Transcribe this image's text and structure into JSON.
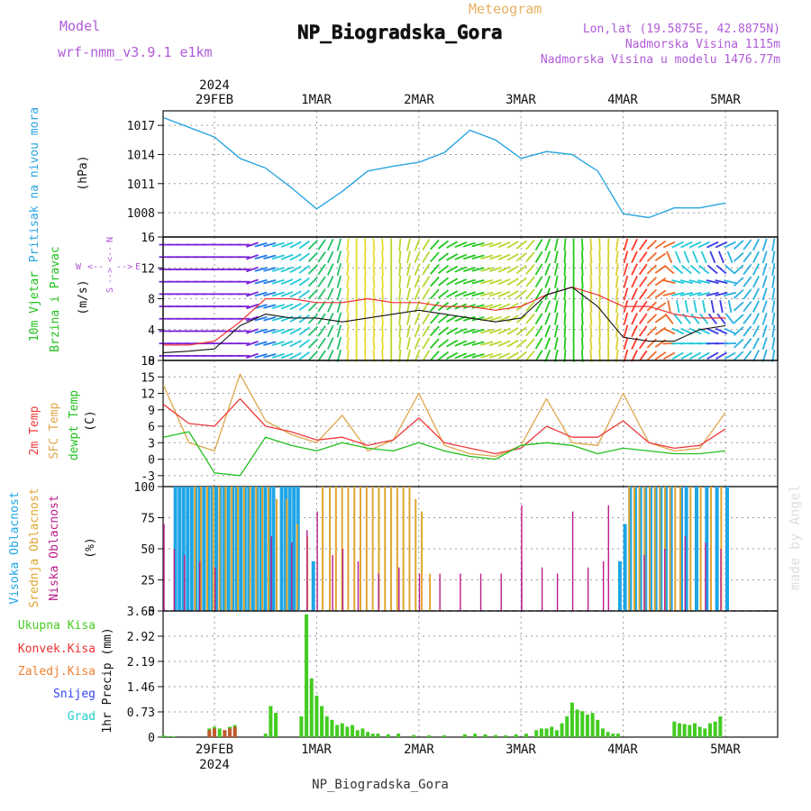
{
  "header": {
    "model_label": "Model",
    "model_name": "wrf-nmm_v3.9.1 e1km",
    "meteogram_label": "Meteogram",
    "station": "NP_Biogradska_Gora",
    "lonlat": "Lon,lat (19.5875E, 42.8875N)",
    "elevation": "Nadmorska Visina 1115m",
    "model_elevation": "Nadmorska Visina u modelu 1476.77m",
    "footer_station": "NP_Biogradska_Gora",
    "watermark": "made by Angel"
  },
  "time_axis": {
    "year_top": "2024",
    "year_bottom": "2024",
    "days": [
      "29FEB",
      "1MAR",
      "2MAR",
      "3MAR",
      "4MAR",
      "5MAR"
    ]
  },
  "colors": {
    "pressure": "#2aa5e0",
    "temp_2m": "#ee3a3a",
    "temp_sfc": "#dea64a",
    "dewpoint": "#22c01e",
    "high_cloud": "#1ea6e6",
    "mid_cloud": "#e0a630",
    "low_cloud": "#bb1c8a",
    "precip_total": "#44cc22",
    "precip_conv": "#ee3333",
    "precip_frozen": "#f08030",
    "precip_snow": "#3344ee",
    "precip_hail": "#22cccc",
    "header_text": "#b05ad8",
    "meteogram_text": "#e8b060"
  },
  "chart_data": [
    {
      "id": "pressure",
      "type": "line",
      "ylabel_parts": [
        "Pritisak na nivou mora",
        "(hPa)"
      ],
      "yticks": [
        "1008",
        "1011",
        "1014",
        "1017"
      ],
      "ylim": [
        1005.5,
        1018.5
      ],
      "x_days": [
        0,
        0.25,
        0.5,
        0.75,
        1.0,
        1.25,
        1.5,
        1.75,
        2.0,
        2.25,
        2.5,
        2.75,
        3.0,
        3.25,
        3.5,
        3.75,
        4.0,
        4.25,
        4.5,
        4.75,
        5.0,
        5.25,
        5.5
      ],
      "series": [
        {
          "values": [
            1017.8,
            1016.8,
            1015.8,
            1013.6,
            1012.6,
            1010.6,
            1008.4,
            1010.2,
            1012.3,
            1012.8,
            1013.2,
            1014.2,
            1016.5,
            1015.5,
            1013.6,
            1014.3,
            1014.0,
            1012.3,
            1007.9,
            1007.5,
            1008.5,
            1008.5,
            1009.0
          ]
        }
      ]
    },
    {
      "id": "wind",
      "type": "line",
      "ylabel_parts": [
        "10m Vjetar",
        "Brzina i Pravac",
        "(m/s)"
      ],
      "direction_key": [
        "N",
        "W",
        "E",
        "S"
      ],
      "yticks": [
        "0",
        "4",
        "8",
        "12",
        "16"
      ],
      "ylim": [
        0,
        16
      ],
      "x_days": [
        0,
        0.25,
        0.5,
        0.75,
        1.0,
        1.25,
        1.5,
        1.75,
        2.0,
        2.25,
        2.5,
        2.75,
        3.0,
        3.25,
        3.5,
        3.75,
        4.0,
        4.25,
        4.5,
        4.75,
        5.0,
        5.25,
        5.5
      ],
      "series": [
        {
          "name": "speed",
          "values": [
            1.0,
            1.2,
            1.5,
            4.5,
            6.0,
            5.5,
            5.5,
            5.0,
            5.5,
            6.0,
            6.5,
            6.0,
            5.5,
            5.0,
            5.5,
            8.5,
            9.5,
            7.0,
            3.0,
            2.5,
            2.5,
            4.0,
            4.5
          ]
        },
        {
          "name": "gust",
          "values": [
            2.0,
            2.0,
            2.5,
            5.0,
            8.0,
            8.0,
            7.5,
            7.5,
            8.0,
            7.5,
            7.5,
            7.0,
            7.0,
            6.5,
            7.0,
            8.5,
            9.5,
            8.5,
            7.0,
            7.0,
            6.0,
            5.5,
            5.5
          ]
        }
      ]
    },
    {
      "id": "temperature",
      "type": "line",
      "ylabel_parts": [
        "2m Temp",
        "SFC Temp",
        "dewpt Temp",
        "(C)"
      ],
      "yticks": [
        "-3",
        "0",
        "3",
        "6",
        "9",
        "12",
        "15",
        "18"
      ],
      "ylim": [
        -5,
        18
      ],
      "x_days": [
        0,
        0.25,
        0.5,
        0.75,
        1.0,
        1.25,
        1.5,
        1.75,
        2.0,
        2.25,
        2.5,
        2.75,
        3.0,
        3.25,
        3.5,
        3.75,
        4.0,
        4.25,
        4.5,
        4.75,
        5.0,
        5.25,
        5.5
      ],
      "series": [
        {
          "name": "2m Temp",
          "values": [
            10.0,
            6.5,
            6.0,
            11.0,
            6.0,
            5.0,
            3.5,
            4.0,
            2.5,
            3.5,
            7.5,
            3.0,
            2.0,
            1.0,
            2.0,
            6.0,
            4.0,
            4.0,
            7.0,
            3.0,
            2.0,
            2.5,
            5.5
          ]
        },
        {
          "name": "SFC Temp",
          "values": [
            13.5,
            3.0,
            1.5,
            15.5,
            7.0,
            4.5,
            3.0,
            8.0,
            1.5,
            3.5,
            12.0,
            2.5,
            1.0,
            0.5,
            2.5,
            11.0,
            3.0,
            2.5,
            12.0,
            3.0,
            1.5,
            2.0,
            8.5
          ]
        },
        {
          "name": "dewpt Temp",
          "values": [
            4.0,
            5.0,
            -2.5,
            -3.0,
            4.0,
            2.5,
            1.5,
            3.0,
            2.0,
            1.5,
            3.0,
            1.5,
            0.5,
            0.0,
            2.5,
            3.0,
            2.5,
            1.0,
            2.0,
            1.5,
            1.0,
            1.0,
            1.5
          ]
        }
      ]
    },
    {
      "id": "clouds",
      "type": "bar",
      "ylabel_parts": [
        "Visoka Oblacnost",
        "Srednja Oblacnost",
        "Niska Oblacnost",
        "(%)"
      ],
      "yticks": [
        "0",
        "25",
        "50",
        "75",
        "100"
      ],
      "ylim": [
        0,
        100
      ],
      "series": [
        {
          "name": "Visoka Oblacnost",
          "days": [
            0.1,
            0.14,
            0.18,
            0.22,
            0.26,
            0.3,
            0.34,
            0.38,
            0.42,
            0.46,
            0.5,
            0.54,
            0.58,
            0.62,
            0.66,
            0.7,
            0.74,
            0.78,
            0.82,
            0.86,
            0.9,
            0.94,
            0.98,
            1.02,
            1.06,
            1.14,
            1.18,
            1.22,
            1.26,
            1.3,
            1.45,
            4.45,
            4.5,
            4.55,
            4.6,
            4.65,
            4.7,
            4.75,
            4.8,
            4.85,
            4.9,
            4.95,
            5.05,
            5.1,
            5.2,
            5.3,
            5.4,
            5.5
          ],
          "values": [
            100,
            100,
            100,
            100,
            100,
            100,
            100,
            100,
            100,
            100,
            100,
            100,
            100,
            100,
            100,
            100,
            100,
            100,
            100,
            100,
            100,
            100,
            100,
            100,
            100,
            100,
            100,
            100,
            100,
            100,
            40,
            40,
            70,
            100,
            100,
            100,
            100,
            100,
            100,
            100,
            100,
            100,
            100,
            100,
            100,
            100,
            100,
            100
          ]
        },
        {
          "name": "Srednja Oblacnost",
          "days": [
            0.3,
            0.36,
            0.42,
            0.48,
            0.54,
            0.6,
            0.66,
            0.72,
            0.78,
            0.84,
            0.9,
            0.96,
            1.02,
            1.1,
            1.2,
            1.3,
            1.4,
            1.55,
            1.62,
            1.68,
            1.74,
            1.8,
            1.86,
            1.92,
            1.98,
            2.04,
            2.1,
            2.16,
            2.22,
            2.28,
            2.34,
            2.4,
            2.46,
            2.52,
            2.6,
            4.55,
            4.6,
            4.65,
            4.7,
            4.75,
            4.8,
            4.85,
            4.9,
            4.95,
            5.0,
            5.05,
            5.15,
            5.25,
            5.35,
            5.45
          ],
          "values": [
            100,
            100,
            100,
            100,
            100,
            100,
            100,
            100,
            100,
            100,
            100,
            100,
            100,
            90,
            90,
            70,
            60,
            100,
            100,
            100,
            100,
            100,
            100,
            100,
            100,
            100,
            100,
            100,
            100,
            100,
            100,
            100,
            90,
            80,
            30,
            100,
            100,
            100,
            100,
            100,
            100,
            100,
            100,
            100,
            100,
            100,
            100,
            100,
            100,
            100
          ]
        },
        {
          "name": "Niska Oblacnost",
          "days": [
            0.0,
            0.1,
            0.2,
            0.35,
            0.5,
            1.05,
            1.25,
            1.4,
            1.5,
            1.65,
            1.75,
            1.9,
            2.1,
            2.3,
            2.5,
            2.7,
            2.9,
            3.1,
            3.3,
            3.5,
            3.5,
            3.7,
            3.85,
            4.0,
            4.15,
            4.3,
            4.35,
            4.7,
            4.9,
            5.1,
            5.3,
            5.45
          ],
          "values": [
            70,
            50,
            45,
            40,
            35,
            60,
            55,
            65,
            80,
            45,
            50,
            40,
            30,
            35,
            30,
            30,
            30,
            30,
            30,
            40,
            85,
            35,
            30,
            80,
            35,
            40,
            85,
            45,
            50,
            60,
            55,
            50
          ]
        }
      ]
    },
    {
      "id": "precip",
      "type": "bar",
      "ylabel_parts": [
        "1hr Precip (mm)"
      ],
      "legend": [
        "Ukupna Kisa",
        "Konvek.Kisa",
        "Zaledj.Kisa",
        "Snijeg",
        "Grad"
      ],
      "yticks": [
        "0",
        "0.73",
        "1.46",
        "2.19",
        "2.92",
        "3.65"
      ],
      "ylim": [
        0,
        3.65
      ],
      "series": [
        {
          "name": "Ukupna Kisa",
          "days": [
            0.0,
            0.05,
            0.1,
            0.45,
            0.5,
            0.55,
            0.6,
            0.65,
            0.7,
            1.0,
            1.05,
            1.1,
            1.35,
            1.4,
            1.45,
            1.5,
            1.55,
            1.6,
            1.65,
            1.7,
            1.75,
            1.8,
            1.85,
            1.9,
            1.95,
            2.0,
            2.05,
            2.1,
            2.2,
            2.3,
            2.45,
            2.6,
            2.75,
            2.95,
            3.05,
            3.15,
            3.25,
            3.35,
            3.45,
            3.55,
            3.65,
            3.7,
            3.75,
            3.8,
            3.85,
            3.9,
            3.95,
            4.0,
            4.05,
            4.1,
            4.15,
            4.2,
            4.25,
            4.3,
            4.35,
            4.4,
            4.45,
            5.0,
            5.05,
            5.1,
            5.15,
            5.2,
            5.25,
            5.3,
            5.35,
            5.4,
            5.45
          ],
          "values": [
            0.05,
            0.03,
            0.02,
            0.25,
            0.3,
            0.25,
            0.2,
            0.3,
            0.35,
            0.1,
            0.9,
            0.7,
            0.6,
            3.55,
            1.7,
            1.2,
            0.9,
            0.6,
            0.5,
            0.35,
            0.4,
            0.3,
            0.35,
            0.2,
            0.25,
            0.15,
            0.1,
            0.1,
            0.08,
            0.1,
            0.06,
            0.05,
            0.05,
            0.08,
            0.1,
            0.08,
            0.06,
            0.05,
            0.08,
            0.1,
            0.2,
            0.25,
            0.25,
            0.3,
            0.2,
            0.4,
            0.6,
            1.0,
            0.8,
            0.75,
            0.65,
            0.7,
            0.5,
            0.25,
            0.15,
            0.1,
            0.1,
            0.45,
            0.4,
            0.38,
            0.35,
            0.4,
            0.3,
            0.25,
            0.4,
            0.45,
            0.6
          ]
        },
        {
          "name": "Konvek.Kisa",
          "days": [
            0.45,
            0.5,
            0.6,
            0.65,
            0.7
          ],
          "values": [
            0.2,
            0.25,
            0.2,
            0.25,
            0.3
          ]
        }
      ]
    }
  ]
}
